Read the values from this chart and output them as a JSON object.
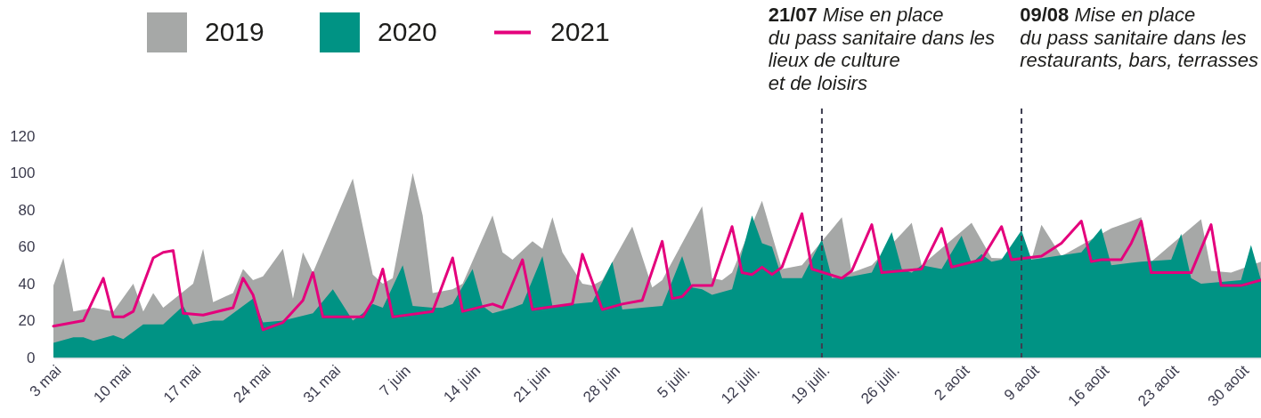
{
  "chart_data": {
    "type": "area",
    "legend": "top left",
    "xlim": [
      "--05-03",
      "--09-01"
    ],
    "xticks": [
      {
        "value": "--05-03",
        "label": "3 mai"
      },
      {
        "value": "--05-10",
        "label": "10 mai"
      },
      {
        "value": "--05-17",
        "label": "17 mai"
      },
      {
        "value": "--05-24",
        "label": "24 mai"
      },
      {
        "value": "--05-31",
        "label": "31 mai"
      },
      {
        "value": "--06-07",
        "label": "7 juin"
      },
      {
        "value": "--06-14",
        "label": "14 juin"
      },
      {
        "value": "--06-21",
        "label": "21 juin"
      },
      {
        "value": "--06-28",
        "label": "28 juin"
      },
      {
        "value": "--07-05",
        "label": "5 juill."
      },
      {
        "value": "--07-12",
        "label": "12 juill."
      },
      {
        "value": "--07-19",
        "label": "19 juill."
      },
      {
        "value": "--07-26",
        "label": "26 juill."
      },
      {
        "value": "--08-02",
        "label": "2 août"
      },
      {
        "value": "--08-09",
        "label": "9 août"
      },
      {
        "value": "--08-16",
        "label": "16 août"
      },
      {
        "value": "--08-23",
        "label": "23 août"
      },
      {
        "value": "--08-30",
        "label": "30 août"
      }
    ],
    "ylim": [
      0,
      135
    ],
    "yticks": [
      0,
      20,
      40,
      60,
      80,
      100,
      120
    ],
    "series": [
      {
        "name": "2019",
        "color": "#a6a8a7",
        "x": [
          "--05-03",
          "--05-04",
          "--05-05",
          "--05-07",
          "--05-09",
          "--05-11",
          "--05-12",
          "--05-13",
          "--05-14",
          "--05-17",
          "--05-18",
          "--05-19",
          "--05-21",
          "--05-22",
          "--05-23",
          "--05-24",
          "--05-26",
          "--05-27",
          "--05-28",
          "--05-29",
          "--06-02",
          "--06-04",
          "--06-05",
          "--06-06",
          "--06-08",
          "--06-09",
          "--06-10",
          "--06-12",
          "--06-13",
          "--06-16",
          "--06-17",
          "--06-18",
          "--06-20",
          "--06-21",
          "--06-22",
          "--06-23",
          "--06-25",
          "--06-26",
          "--06-27",
          "--06-30",
          "--07-02",
          "--07-03",
          "--07-07",
          "--07-08",
          "--07-09",
          "--07-10",
          "--07-13",
          "--07-15",
          "--07-17",
          "--07-21",
          "--07-22",
          "--07-24",
          "--07-28",
          "--07-29",
          "--08-03",
          "--08-05",
          "--08-09",
          "--08-10",
          "--08-12",
          "--08-17",
          "--08-20",
          "--08-21",
          "--08-26",
          "--08-27",
          "--08-29",
          "--09-01"
        ],
        "values": [
          39,
          54,
          25,
          27,
          25,
          40,
          25,
          35,
          27,
          40,
          59,
          30,
          35,
          48,
          42,
          44,
          59,
          32,
          57,
          46,
          97,
          45,
          40,
          43,
          100,
          77,
          35,
          37,
          40,
          77,
          57,
          53,
          63,
          59,
          76,
          57,
          40,
          39,
          42,
          71,
          38,
          42,
          82,
          43,
          42,
          46,
          85,
          48,
          50,
          76,
          46,
          50,
          73,
          50,
          73,
          54,
          53,
          72,
          55,
          70,
          76,
          52,
          75,
          47,
          46,
          52
        ]
      },
      {
        "name": "2020",
        "color": "#009384",
        "x": [
          "--05-03",
          "--05-05",
          "--05-06",
          "--05-07",
          "--05-09",
          "--05-10",
          "--05-12",
          "--05-14",
          "--05-16",
          "--05-17",
          "--05-19",
          "--05-20",
          "--05-23",
          "--05-24",
          "--05-26",
          "--05-29",
          "--05-31",
          "--06-02",
          "--06-03",
          "--06-04",
          "--06-05",
          "--06-07",
          "--06-08",
          "--06-10",
          "--06-11",
          "--06-12",
          "--06-14",
          "--06-15",
          "--06-16",
          "--06-18",
          "--06-19",
          "--06-21",
          "--06-22",
          "--06-26",
          "--06-28",
          "--06-29",
          "--07-03",
          "--07-05",
          "--07-06",
          "--07-07",
          "--07-08",
          "--07-10",
          "--07-12",
          "--07-13",
          "--07-14",
          "--07-15",
          "--07-17",
          "--07-19",
          "--07-20",
          "--07-22",
          "--07-24",
          "--07-26",
          "--07-27",
          "--07-28",
          "--07-29",
          "--07-31",
          "--08-02",
          "--08-03",
          "--08-04",
          "--08-05",
          "--08-06",
          "--08-08",
          "--08-09",
          "--08-14",
          "--08-16",
          "--08-17",
          "--08-20",
          "--08-23",
          "--08-24",
          "--08-25",
          "--08-26",
          "--08-30",
          "--08-31",
          "--09-01"
        ],
        "values": [
          8,
          11,
          11,
          9,
          12,
          10,
          18,
          18,
          28,
          18,
          20,
          20,
          32,
          19,
          20,
          24,
          37,
          20,
          24,
          29,
          27,
          50,
          28,
          27,
          27,
          29,
          48,
          28,
          24,
          27,
          29,
          55,
          28,
          30,
          52,
          26,
          28,
          55,
          38,
          37,
          34,
          37,
          77,
          62,
          60,
          43,
          43,
          64,
          43,
          44,
          46,
          68,
          48,
          46,
          50,
          48,
          66,
          51,
          56,
          52,
          53,
          69,
          53,
          57,
          70,
          50,
          52,
          53,
          67,
          43,
          40,
          42,
          61,
          42
        ]
      },
      {
        "name": "2021",
        "type": "line",
        "color": "#e4007c",
        "x": [
          "--05-03",
          "--05-06",
          "--05-08",
          "--05-09",
          "--05-10",
          "--05-11",
          "--05-13",
          "--05-14",
          "--05-15",
          "--05-16",
          "--05-18",
          "--05-21",
          "--05-22",
          "--05-23",
          "--05-24",
          "--05-26",
          "--05-28",
          "--05-29",
          "--05-30",
          "--06-03",
          "--06-04",
          "--06-05",
          "--06-06",
          "--06-10",
          "--06-12",
          "--06-13",
          "--06-16",
          "--06-17",
          "--06-19",
          "--06-20",
          "--06-24",
          "--06-25",
          "--06-27",
          "--06-29",
          "--07-01",
          "--07-03",
          "--07-04",
          "--07-05",
          "--07-06",
          "--07-08",
          "--07-10",
          "--07-11",
          "--07-12",
          "--07-13",
          "--07-14",
          "--07-15",
          "--07-17",
          "--07-18",
          "--07-21",
          "--07-22",
          "--07-24",
          "--07-25",
          "--07-29",
          "--07-31",
          "--08-01",
          "--08-04",
          "--08-06",
          "--08-07",
          "--08-10",
          "--08-12",
          "--08-14",
          "--08-15",
          "--08-16",
          "--08-18",
          "--08-19",
          "--08-20",
          "--08-21",
          "--08-25",
          "--08-27",
          "--08-28",
          "--08-30",
          "--09-01"
        ],
        "values": [
          17,
          20,
          43,
          22,
          22,
          25,
          54,
          57,
          58,
          24,
          23,
          27,
          43,
          34,
          15,
          19,
          31,
          46,
          22,
          22,
          31,
          48,
          22,
          25,
          54,
          25,
          29,
          27,
          53,
          26,
          29,
          56,
          26,
          29,
          31,
          63,
          32,
          33,
          39,
          39,
          71,
          46,
          45,
          49,
          45,
          49,
          78,
          48,
          43,
          47,
          72,
          46,
          48,
          70,
          49,
          53,
          71,
          53,
          55,
          62,
          74,
          52,
          53,
          53,
          62,
          74,
          46,
          46,
          72,
          39,
          39,
          42
        ]
      }
    ],
    "ref_lines": [
      {
        "axis": "x",
        "value": "--07-19",
        "label": "21/07 Mise en place\ndu pass sanitaire dans les\nlieux de culture\net de loisirs",
        "line_style": "dashed",
        "color": "#3d3d4f"
      },
      {
        "axis": "x",
        "value": "--08-08",
        "label": "09/08 Mise en place\ndu pass sanitaire dans les\nrestaurants, bars, terrasses",
        "line_style": "dashed",
        "color": "#3d3d4f"
      }
    ]
  }
}
